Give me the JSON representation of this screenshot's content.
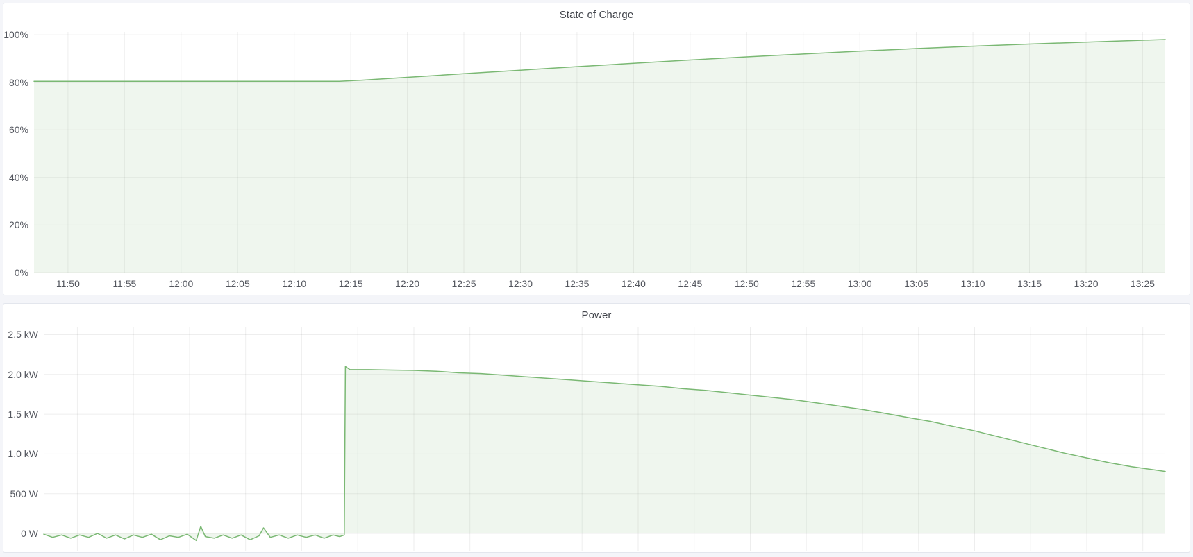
{
  "page": {
    "background_color": "#f4f5f9",
    "panel_background": "#ffffff",
    "panel_border_color": "#e3e6ed",
    "accent_green": "#7ab873"
  },
  "chart_data": [
    {
      "type": "area",
      "title": "State of Charge",
      "xlabel": "",
      "ylabel": "",
      "unit": "percent",
      "grid": true,
      "legend": "none",
      "line_color": "#7ab873",
      "fill_color": "rgba(122,184,115,0.12)",
      "grid_color": "rgba(0,0,0,0.065)",
      "x_domain": [
        707,
        807
      ],
      "y_domain": [
        0,
        101.2
      ],
      "ylim": [
        0,
        100
      ],
      "show_x_labels": true,
      "y_ticks": [
        {
          "value": 0,
          "label": "0%"
        },
        {
          "value": 20,
          "label": "20%"
        },
        {
          "value": 40,
          "label": "40%"
        },
        {
          "value": 60,
          "label": "60%"
        },
        {
          "value": 80,
          "label": "80%"
        },
        {
          "value": 100,
          "label": "100%"
        }
      ],
      "x_ticks": [
        {
          "value": 710,
          "label": "11:50"
        },
        {
          "value": 715,
          "label": "11:55"
        },
        {
          "value": 720,
          "label": "12:00"
        },
        {
          "value": 725,
          "label": "12:05"
        },
        {
          "value": 730,
          "label": "12:10"
        },
        {
          "value": 735,
          "label": "12:15"
        },
        {
          "value": 740,
          "label": "12:20"
        },
        {
          "value": 745,
          "label": "12:25"
        },
        {
          "value": 750,
          "label": "12:30"
        },
        {
          "value": 755,
          "label": "12:35"
        },
        {
          "value": 760,
          "label": "12:40"
        },
        {
          "value": 765,
          "label": "12:45"
        },
        {
          "value": 770,
          "label": "12:50"
        },
        {
          "value": 775,
          "label": "12:55"
        },
        {
          "value": 780,
          "label": "13:00"
        },
        {
          "value": 785,
          "label": "13:05"
        },
        {
          "value": 790,
          "label": "13:10"
        },
        {
          "value": 795,
          "label": "13:15"
        },
        {
          "value": 800,
          "label": "13:20"
        },
        {
          "value": 805,
          "label": "13:25"
        }
      ],
      "points": [
        [
          707,
          80.4
        ],
        [
          715,
          80.4
        ],
        [
          722,
          80.4
        ],
        [
          728,
          80.4
        ],
        [
          734,
          80.4
        ],
        [
          736,
          80.9
        ],
        [
          740,
          82.1
        ],
        [
          745,
          83.6
        ],
        [
          750,
          85.1
        ],
        [
          755,
          86.6
        ],
        [
          760,
          88.0
        ],
        [
          765,
          89.4
        ],
        [
          770,
          90.7
        ],
        [
          775,
          91.9
        ],
        [
          780,
          93.1
        ],
        [
          785,
          94.2
        ],
        [
          790,
          95.2
        ],
        [
          795,
          96.1
        ],
        [
          800,
          96.9
        ],
        [
          805,
          97.7
        ],
        [
          807,
          98.0
        ]
      ]
    },
    {
      "type": "area",
      "title": "Power",
      "xlabel": "",
      "ylabel": "",
      "unit": "watt",
      "grid": true,
      "legend": "none",
      "line_color": "#7ab873",
      "fill_color": "rgba(122,184,115,0.12)",
      "grid_color": "rgba(0,0,0,0.065)",
      "x_domain": [
        707,
        807
      ],
      "y_domain": [
        -0.218,
        2.6
      ],
      "ylim": [
        0,
        2.5
      ],
      "show_x_labels": false,
      "y_ticks": [
        {
          "value": 0,
          "label": "0 W"
        },
        {
          "value": 0.5,
          "label": "500 W"
        },
        {
          "value": 1.0,
          "label": "1.0 kW"
        },
        {
          "value": 1.5,
          "label": "1.5 kW"
        },
        {
          "value": 2.0,
          "label": "2.0 kW"
        },
        {
          "value": 2.5,
          "label": "2.5 kW"
        }
      ],
      "x_ticks": [
        {
          "value": 710,
          "label": "11:50"
        },
        {
          "value": 715,
          "label": "11:55"
        },
        {
          "value": 720,
          "label": "12:00"
        },
        {
          "value": 725,
          "label": "12:05"
        },
        {
          "value": 730,
          "label": "12:10"
        },
        {
          "value": 735,
          "label": "12:15"
        },
        {
          "value": 740,
          "label": "12:20"
        },
        {
          "value": 745,
          "label": "12:25"
        },
        {
          "value": 750,
          "label": "12:30"
        },
        {
          "value": 755,
          "label": "12:35"
        },
        {
          "value": 760,
          "label": "12:40"
        },
        {
          "value": 765,
          "label": "12:45"
        },
        {
          "value": 770,
          "label": "12:50"
        },
        {
          "value": 775,
          "label": "12:55"
        },
        {
          "value": 780,
          "label": "13:00"
        },
        {
          "value": 785,
          "label": "13:05"
        },
        {
          "value": 790,
          "label": "13:10"
        },
        {
          "value": 795,
          "label": "13:15"
        },
        {
          "value": 800,
          "label": "13:20"
        },
        {
          "value": 805,
          "label": "13:25"
        }
      ],
      "points": [
        [
          707,
          -0.01
        ],
        [
          707.8,
          -0.05
        ],
        [
          708.6,
          -0.02
        ],
        [
          709.4,
          -0.06
        ],
        [
          710.2,
          -0.02
        ],
        [
          711,
          -0.05
        ],
        [
          711.8,
          0.0
        ],
        [
          712.6,
          -0.06
        ],
        [
          713.4,
          -0.02
        ],
        [
          714.2,
          -0.07
        ],
        [
          715,
          -0.02
        ],
        [
          715.8,
          -0.05
        ],
        [
          716.6,
          -0.01
        ],
        [
          717.4,
          -0.08
        ],
        [
          718.2,
          -0.03
        ],
        [
          719,
          -0.05
        ],
        [
          719.8,
          -0.01
        ],
        [
          720.6,
          -0.09
        ],
        [
          721,
          0.09
        ],
        [
          721.4,
          -0.04
        ],
        [
          722.2,
          -0.06
        ],
        [
          723,
          -0.02
        ],
        [
          723.8,
          -0.06
        ],
        [
          724.6,
          -0.02
        ],
        [
          725.4,
          -0.08
        ],
        [
          726.2,
          -0.03
        ],
        [
          726.6,
          0.07
        ],
        [
          727.2,
          -0.05
        ],
        [
          728,
          -0.02
        ],
        [
          728.8,
          -0.06
        ],
        [
          729.6,
          -0.02
        ],
        [
          730.4,
          -0.05
        ],
        [
          731.2,
          -0.02
        ],
        [
          732,
          -0.06
        ],
        [
          732.8,
          -0.02
        ],
        [
          733.4,
          -0.04
        ],
        [
          733.8,
          -0.02
        ],
        [
          733.9,
          2.1
        ],
        [
          734.3,
          2.06
        ],
        [
          736,
          2.06
        ],
        [
          738,
          2.055
        ],
        [
          740,
          2.05
        ],
        [
          742,
          2.04
        ],
        [
          744,
          2.02
        ],
        [
          746,
          2.01
        ],
        [
          748,
          1.99
        ],
        [
          750,
          1.97
        ],
        [
          752,
          1.95
        ],
        [
          754,
          1.93
        ],
        [
          756,
          1.91
        ],
        [
          758,
          1.89
        ],
        [
          760,
          1.87
        ],
        [
          762,
          1.85
        ],
        [
          764,
          1.82
        ],
        [
          766,
          1.8
        ],
        [
          768,
          1.77
        ],
        [
          770,
          1.74
        ],
        [
          772,
          1.71
        ],
        [
          774,
          1.68
        ],
        [
          776,
          1.64
        ],
        [
          778,
          1.6
        ],
        [
          780,
          1.56
        ],
        [
          782,
          1.51
        ],
        [
          784,
          1.46
        ],
        [
          786,
          1.41
        ],
        [
          788,
          1.35
        ],
        [
          790,
          1.29
        ],
        [
          792,
          1.22
        ],
        [
          794,
          1.15
        ],
        [
          796,
          1.08
        ],
        [
          798,
          1.01
        ],
        [
          800,
          0.95
        ],
        [
          802,
          0.89
        ],
        [
          804,
          0.84
        ],
        [
          806,
          0.8
        ],
        [
          807,
          0.78
        ]
      ]
    }
  ]
}
